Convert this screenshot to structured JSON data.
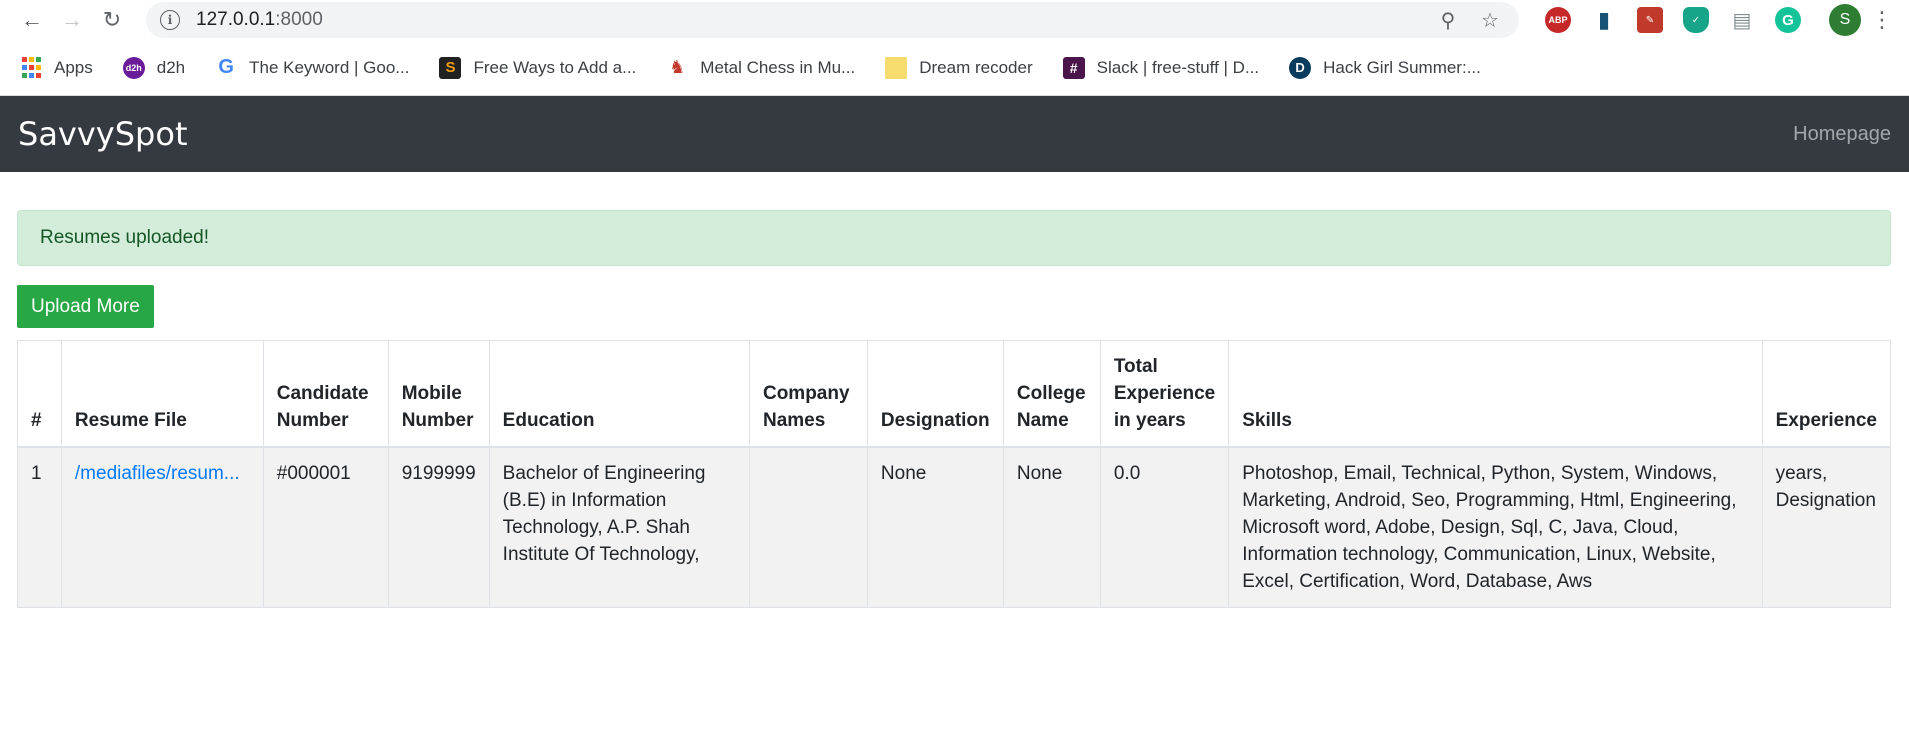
{
  "browser": {
    "url_host": "127.0.0.1",
    "url_port": ":8000",
    "profile_initial": "S"
  },
  "bookmarks": [
    {
      "label": "Apps",
      "icon": "apps-grid-icon"
    },
    {
      "label": "d2h",
      "icon": "d2h-icon"
    },
    {
      "label": "The Keyword | Goo...",
      "icon": "google-icon"
    },
    {
      "label": "Free Ways to Add a...",
      "icon": "s-logo-icon"
    },
    {
      "label": "Metal Chess in Mu...",
      "icon": "chess-icon"
    },
    {
      "label": "Dream recoder",
      "icon": "folder-icon"
    },
    {
      "label": "Slack | free-stuff | D...",
      "icon": "slack-icon"
    },
    {
      "label": "Hack Girl Summer:...",
      "icon": "dev-icon"
    }
  ],
  "navbar": {
    "brand": "SavvySpot",
    "link": "Homepage"
  },
  "alert": {
    "message": "Resumes uploaded!"
  },
  "actions": {
    "upload_more": "Upload More"
  },
  "table": {
    "headers": [
      "#",
      "Resume File",
      "Candidate Number",
      "Mobile Number",
      "Education",
      "Company Names",
      "Designation",
      "College Name",
      "Total Experience in years",
      "Skills",
      "Experience"
    ],
    "rows": [
      {
        "index": "1",
        "resume_file": "/mediafiles/resum...",
        "candidate_number": "#000001",
        "mobile_number": "9199999",
        "education": "Bachelor of Engineering (B.E) in Information Technology, A.P. Shah Institute Of Technology,",
        "company_names": "",
        "designation": "None",
        "college_name": "None",
        "total_experience": "0.0",
        "skills": "Photoshop, Email, Technical, Python, System, Windows, Marketing, Android, Seo, Programming, Html, Engineering, Microsoft word, Adobe, Design, Sql, C, Java, Cloud, Information technology, Communication, Linux, Website, Excel, Certification, Word, Database, Aws",
        "experience": "years, Designation"
      }
    ]
  },
  "colors": {
    "navbar_bg": "#343a40",
    "alert_bg": "#d4edda",
    "alert_text": "#155724",
    "button_green": "#28a745",
    "link_blue": "#007bff"
  }
}
